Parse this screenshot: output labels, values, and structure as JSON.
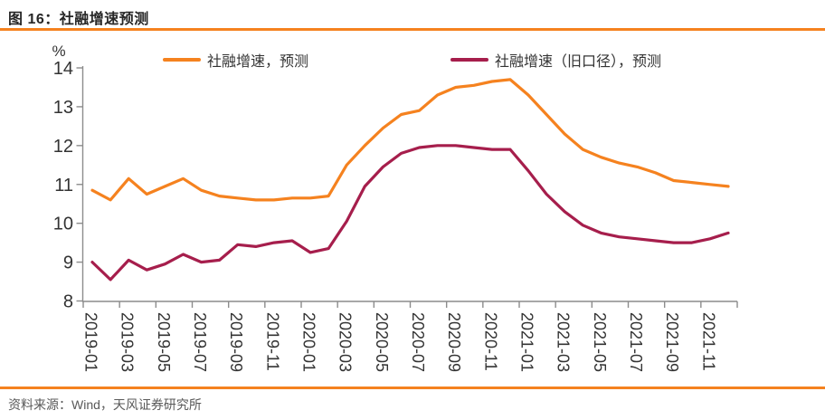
{
  "page": {
    "title": "图 16：社融增速预测",
    "source_note": "资料来源：Wind，天风证券研究所"
  },
  "colors": {
    "accent_rule": "#F5821F",
    "series_new": "#F5821F",
    "series_old": "#A61E4C",
    "axis": "#8C8C8C",
    "tick_text": "#333333",
    "source_text": "#595959"
  },
  "chart_data": {
    "type": "line",
    "title": "图 16：社融增速预测",
    "unit_label": "%",
    "ylim": [
      8,
      14
    ],
    "y_ticks": [
      8,
      9,
      10,
      11,
      12,
      13,
      14
    ],
    "grid": false,
    "legend_position": "top",
    "x": [
      "2019-01",
      "2019-02",
      "2019-03",
      "2019-04",
      "2019-05",
      "2019-06",
      "2019-07",
      "2019-08",
      "2019-09",
      "2019-10",
      "2019-11",
      "2019-12",
      "2020-01",
      "2020-02",
      "2020-03",
      "2020-04",
      "2020-05",
      "2020-06",
      "2020-07",
      "2020-08",
      "2020-09",
      "2020-10",
      "2020-11",
      "2020-12",
      "2021-01",
      "2021-02",
      "2021-03",
      "2021-04",
      "2021-05",
      "2021-06",
      "2021-07",
      "2021-08",
      "2021-09",
      "2021-10",
      "2021-11",
      "2021-12"
    ],
    "x_tick_labels": [
      "2019-01",
      "2019-03",
      "2019-05",
      "2019-07",
      "2019-09",
      "2019-11",
      "2020-01",
      "2020-03",
      "2020-05",
      "2020-07",
      "2020-09",
      "2020-11",
      "2021-01",
      "2021-03",
      "2021-05",
      "2021-07",
      "2021-09",
      "2021-11"
    ],
    "series": [
      {
        "name": "社融增速，预测",
        "color_key": "series_new",
        "values": [
          10.85,
          10.6,
          11.15,
          10.75,
          10.95,
          11.15,
          10.85,
          10.7,
          10.65,
          10.6,
          10.6,
          10.65,
          10.65,
          10.7,
          11.5,
          12.0,
          12.45,
          12.8,
          12.9,
          13.3,
          13.5,
          13.55,
          13.65,
          13.7,
          13.3,
          12.8,
          12.3,
          11.9,
          11.7,
          11.55,
          11.45,
          11.3,
          11.1,
          11.05,
          11.0,
          10.95
        ]
      },
      {
        "name": "社融增速（旧口径），预测",
        "color_key": "series_old",
        "values": [
          9.0,
          8.55,
          9.05,
          8.8,
          8.95,
          9.2,
          9.0,
          9.05,
          9.45,
          9.4,
          9.5,
          9.55,
          9.25,
          9.35,
          10.05,
          10.95,
          11.45,
          11.8,
          11.95,
          12.0,
          12.0,
          11.95,
          11.9,
          11.9,
          11.35,
          10.75,
          10.3,
          9.95,
          9.75,
          9.65,
          9.6,
          9.55,
          9.5,
          9.5,
          9.6,
          9.75
        ]
      }
    ]
  }
}
